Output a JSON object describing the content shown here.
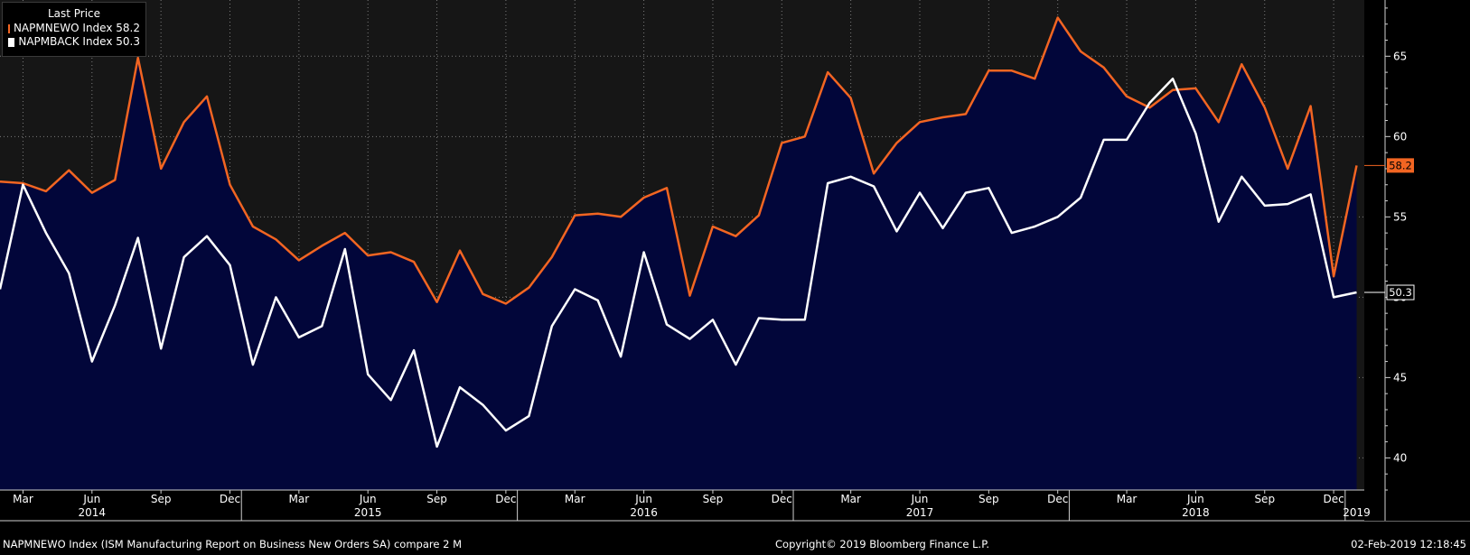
{
  "legend": {
    "title": "Last Price",
    "items": [
      {
        "label": "NAPMNEWO Index",
        "value": "58.2",
        "color": "#f26522"
      },
      {
        "label": "NAPMBACK Index",
        "value": "50.3",
        "color": "#ffffff"
      }
    ]
  },
  "footer": {
    "left": "NAPMNEWO Index (ISM Manufacturing Report on Business New Orders SA) compare 2  M",
    "center": "Copyright© 2019 Bloomberg Finance L.P.",
    "right": "02-Feb-2019 12:18:45"
  },
  "chart_data": {
    "type": "line",
    "ylim": [
      38,
      68.5
    ],
    "yticks": [
      40,
      45,
      50,
      55,
      60,
      65
    ],
    "grid": true,
    "colors": {
      "background": "#161616",
      "gridline": "#7a7a7a",
      "area_top": "#0e6a7a",
      "area_bottom": "#02063a"
    },
    "months": [
      "2014-02",
      "2014-03",
      "2014-04",
      "2014-05",
      "2014-06",
      "2014-07",
      "2014-08",
      "2014-09",
      "2014-10",
      "2014-11",
      "2014-12",
      "2015-01",
      "2015-02",
      "2015-03",
      "2015-04",
      "2015-05",
      "2015-06",
      "2015-07",
      "2015-08",
      "2015-09",
      "2015-10",
      "2015-11",
      "2015-12",
      "2016-01",
      "2016-02",
      "2016-03",
      "2016-04",
      "2016-05",
      "2016-06",
      "2016-07",
      "2016-08",
      "2016-09",
      "2016-10",
      "2016-11",
      "2016-12",
      "2017-01",
      "2017-02",
      "2017-03",
      "2017-04",
      "2017-05",
      "2017-06",
      "2017-07",
      "2017-08",
      "2017-09",
      "2017-10",
      "2017-11",
      "2017-12",
      "2018-01",
      "2018-02",
      "2018-03",
      "2018-04",
      "2018-05",
      "2018-06",
      "2018-07",
      "2018-08",
      "2018-09",
      "2018-10",
      "2018-11",
      "2018-12",
      "2019-01"
    ],
    "month_tick_labels": [
      {
        "month": "2014-03",
        "label": "Mar"
      },
      {
        "month": "2014-06",
        "label": "Jun"
      },
      {
        "month": "2014-09",
        "label": "Sep"
      },
      {
        "month": "2014-12",
        "label": "Dec"
      },
      {
        "month": "2015-03",
        "label": "Mar"
      },
      {
        "month": "2015-06",
        "label": "Jun"
      },
      {
        "month": "2015-09",
        "label": "Sep"
      },
      {
        "month": "2015-12",
        "label": "Dec"
      },
      {
        "month": "2016-03",
        "label": "Mar"
      },
      {
        "month": "2016-06",
        "label": "Jun"
      },
      {
        "month": "2016-09",
        "label": "Sep"
      },
      {
        "month": "2016-12",
        "label": "Dec"
      },
      {
        "month": "2017-03",
        "label": "Mar"
      },
      {
        "month": "2017-06",
        "label": "Jun"
      },
      {
        "month": "2017-09",
        "label": "Sep"
      },
      {
        "month": "2017-12",
        "label": "Dec"
      },
      {
        "month": "2018-03",
        "label": "Mar"
      },
      {
        "month": "2018-06",
        "label": "Jun"
      },
      {
        "month": "2018-09",
        "label": "Sep"
      },
      {
        "month": "2018-12",
        "label": "Dec"
      }
    ],
    "year_labels": [
      {
        "month": "2014-06",
        "label": "2014"
      },
      {
        "month": "2015-06",
        "label": "2015"
      },
      {
        "month": "2016-06",
        "label": "2016"
      },
      {
        "month": "2017-06",
        "label": "2017"
      },
      {
        "month": "2018-06",
        "label": "2018"
      },
      {
        "month": "2019-01",
        "label": "2019"
      }
    ],
    "year_boundaries": [
      "2015-01",
      "2016-01",
      "2017-01",
      "2018-01",
      "2019-01"
    ],
    "series": [
      {
        "name": "NAPMNEWO Index",
        "color": "#f26522",
        "last_label": "58.2",
        "values": [
          57.2,
          57.1,
          56.6,
          57.9,
          56.5,
          57.3,
          64.9,
          58.0,
          60.9,
          62.5,
          57.0,
          54.4,
          53.6,
          52.3,
          53.2,
          54.0,
          52.6,
          52.8,
          52.2,
          49.7,
          52.9,
          50.2,
          49.6,
          50.6,
          52.5,
          55.1,
          55.2,
          55.0,
          56.2,
          56.8,
          50.1,
          54.4,
          53.8,
          55.1,
          59.6,
          60.0,
          64.0,
          62.4,
          57.7,
          59.6,
          60.9,
          61.2,
          61.4,
          64.1,
          64.1,
          63.6,
          67.4,
          65.3,
          64.3,
          62.5,
          61.8,
          62.9,
          63.0,
          60.9,
          64.5,
          61.8,
          58.0,
          61.9,
          51.3,
          58.2
        ]
      },
      {
        "name": "NAPMBACK Index",
        "color": "#ffffff",
        "last_label": "50.3",
        "values": [
          50.5,
          57.0,
          54.0,
          51.5,
          46.0,
          49.5,
          53.7,
          46.8,
          52.5,
          53.8,
          52.0,
          45.8,
          50.0,
          47.5,
          48.2,
          53.0,
          45.2,
          43.6,
          46.7,
          40.7,
          44.4,
          43.3,
          41.7,
          42.6,
          48.2,
          50.5,
          49.8,
          46.3,
          52.8,
          48.3,
          47.4,
          48.6,
          45.8,
          48.7,
          48.6,
          48.6,
          57.1,
          57.5,
          56.9,
          54.1,
          56.5,
          54.3,
          56.5,
          56.8,
          54.0,
          54.4,
          55.0,
          56.2,
          59.8,
          59.8,
          62.1,
          63.6,
          60.2,
          54.7,
          57.5,
          55.7,
          55.8,
          56.4,
          50.0,
          50.3
        ]
      }
    ]
  }
}
